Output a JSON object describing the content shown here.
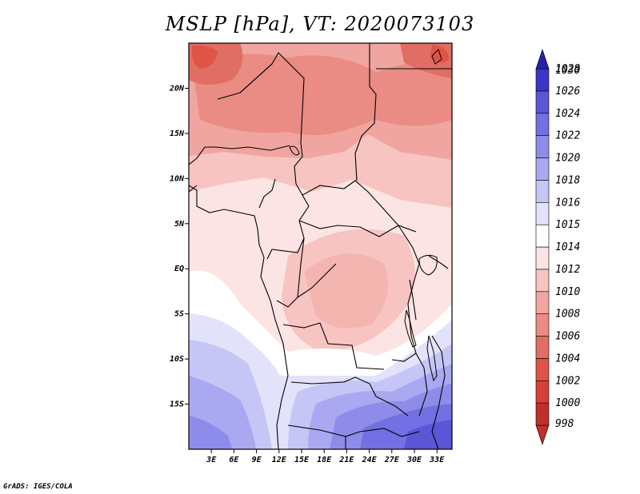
{
  "title": "MSLP [hPa], VT: 2020073103",
  "footer": "GrADS: IGES/COLA",
  "map": {
    "variable": "Mean sea level pressure",
    "units": "hPa",
    "valid_time": "2020073103",
    "lat_range": [
      -20,
      25
    ],
    "lon_range": [
      0,
      35
    ],
    "lat_ticks": [
      {
        "value": 20,
        "label": "20N"
      },
      {
        "value": 15,
        "label": "15N"
      },
      {
        "value": 10,
        "label": "10N"
      },
      {
        "value": 5,
        "label": "5N"
      },
      {
        "value": 0,
        "label": "EQ"
      },
      {
        "value": -5,
        "label": "5S"
      },
      {
        "value": -10,
        "label": "10S"
      },
      {
        "value": -15,
        "label": "15S"
      }
    ],
    "lon_ticks": [
      {
        "value": 3,
        "label": "3E"
      },
      {
        "value": 6,
        "label": "6E"
      },
      {
        "value": 9,
        "label": "9E"
      },
      {
        "value": 12,
        "label": "12E"
      },
      {
        "value": 15,
        "label": "15E"
      },
      {
        "value": 18,
        "label": "18E"
      },
      {
        "value": 21,
        "label": "21E"
      },
      {
        "value": 24,
        "label": "24E"
      },
      {
        "value": 27,
        "label": "27E"
      },
      {
        "value": 30,
        "label": "30E"
      },
      {
        "value": 33,
        "label": "33E"
      }
    ]
  },
  "colorbar": {
    "levels": [
      {
        "label": "998",
        "color": "#c0302a"
      },
      {
        "label": "1000",
        "color": "#c0302a"
      },
      {
        "label": "1002",
        "color": "#d64038"
      },
      {
        "label": "1004",
        "color": "#e05448"
      },
      {
        "label": "1006",
        "color": "#e06e64"
      },
      {
        "label": "1008",
        "color": "#ea8c84"
      },
      {
        "label": "1010",
        "color": "#f1a5a0"
      },
      {
        "label": "1012",
        "color": "#f7c4c2"
      },
      {
        "label": "1014",
        "color": "#fce4e4"
      },
      {
        "label": "1015",
        "color": "#ffffff"
      },
      {
        "label": "1016",
        "color": "#e2e2fb"
      },
      {
        "label": "1018",
        "color": "#c6c6f6"
      },
      {
        "label": "1020",
        "color": "#aaa8f0"
      },
      {
        "label": "1022",
        "color": "#8e8cea"
      },
      {
        "label": "1024",
        "color": "#7270e2"
      },
      {
        "label": "1026",
        "color": "#5a56d6"
      },
      {
        "label": "1028",
        "color": "#3c36c4"
      },
      {
        "label": "1030",
        "color": "#2820a8"
      }
    ]
  }
}
